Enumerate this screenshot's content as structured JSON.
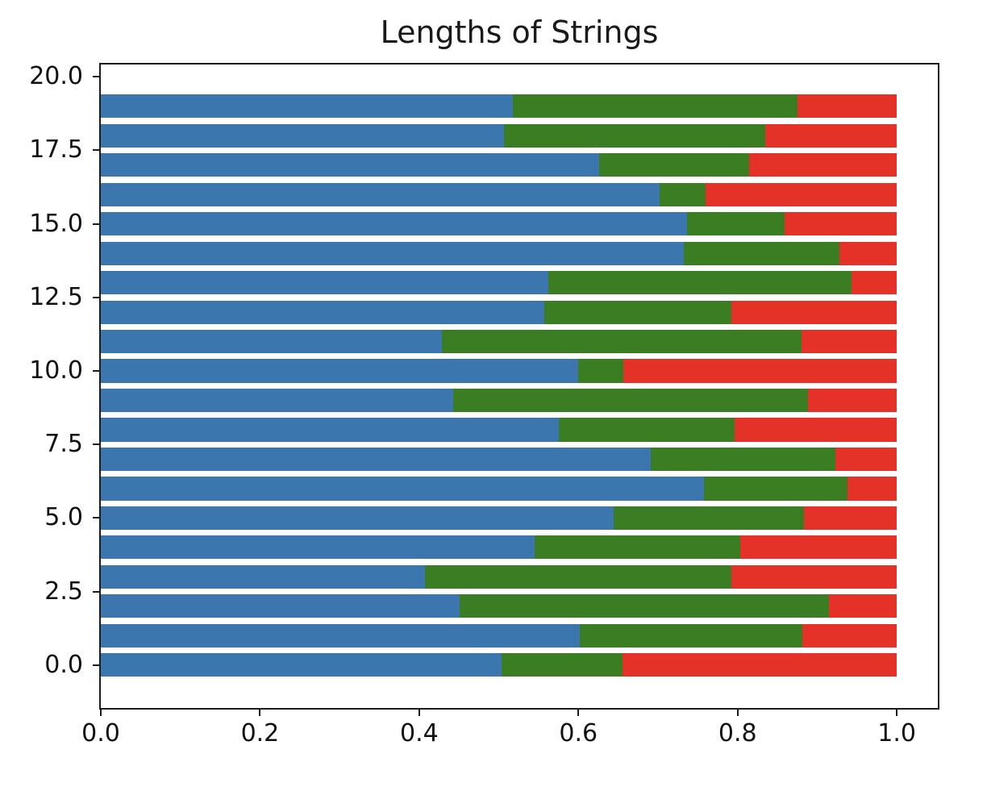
{
  "figure": {
    "title": "Lengths of Strings",
    "background": "#ffffff",
    "spine_color": "#1c1c1c",
    "text_color": "#111111"
  },
  "chart_data": {
    "type": "bar",
    "orientation": "horizontal",
    "stacked": true,
    "title": "Lengths of Strings",
    "xlabel": "",
    "ylabel": "",
    "grid": false,
    "legend": null,
    "xlim": [
      0,
      1.0515
    ],
    "ylim": [
      -1.46,
      20.42
    ],
    "bar_height": 0.8,
    "y_positions": [
      0,
      1,
      2,
      3,
      4,
      5,
      6,
      7,
      8,
      9,
      10,
      11,
      12,
      13,
      14,
      15,
      16,
      17,
      18,
      19
    ],
    "x_tick_labels": [
      "0.0",
      "0.2",
      "0.4",
      "0.6",
      "0.8",
      "1.0"
    ],
    "x_tick_values": [
      0,
      0.2,
      0.4,
      0.6,
      0.8,
      1.0
    ],
    "y_tick_labels": [
      "0.0",
      "2.5",
      "5.0",
      "7.5",
      "10.0",
      "12.5",
      "15.0",
      "17.5",
      "20.0"
    ],
    "y_tick_values": [
      0,
      2.5,
      5,
      7.5,
      10,
      12.5,
      15,
      17.5,
      20
    ],
    "series": [
      {
        "name": "blue",
        "color": "#3b76af",
        "values": [
          0.503,
          0.602,
          0.451,
          0.407,
          0.545,
          0.644,
          0.758,
          0.691,
          0.575,
          0.443,
          0.6,
          0.428,
          0.557,
          0.562,
          0.732,
          0.736,
          0.702,
          0.626,
          0.507,
          0.518
        ]
      },
      {
        "name": "green",
        "color": "#3a7d23",
        "values": [
          0.152,
          0.279,
          0.464,
          0.385,
          0.258,
          0.239,
          0.18,
          0.232,
          0.221,
          0.445,
          0.056,
          0.452,
          0.235,
          0.381,
          0.196,
          0.123,
          0.058,
          0.188,
          0.328,
          0.357
        ]
      },
      {
        "name": "red",
        "color": "#e53228",
        "values": [
          0.345,
          0.119,
          0.085,
          0.208,
          0.197,
          0.117,
          0.062,
          0.077,
          0.204,
          0.112,
          0.344,
          0.12,
          0.208,
          0.057,
          0.072,
          0.141,
          0.24,
          0.186,
          0.165,
          0.125
        ]
      }
    ]
  }
}
